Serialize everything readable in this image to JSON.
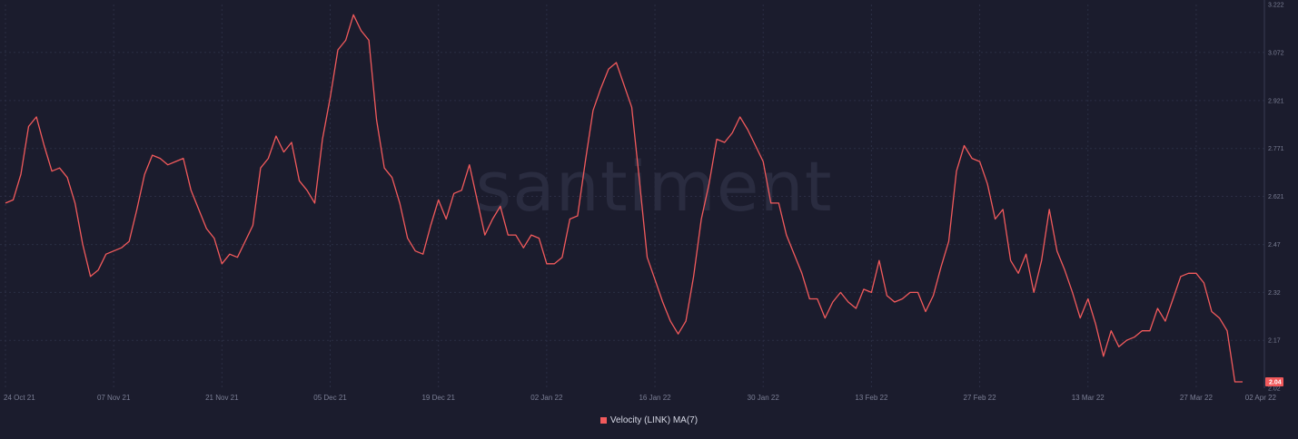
{
  "watermark": "santiment",
  "chart_data": {
    "type": "line",
    "title": "",
    "xlabel": "",
    "ylabel": "",
    "ylim": [
      2.02,
      3.222
    ],
    "grid": true,
    "legend_placement": "bottom-center",
    "x_ticks": [
      "24 Oct 21",
      "07 Nov 21",
      "21 Nov 21",
      "05 Dec 21",
      "19 Dec 21",
      "02 Jan 22",
      "16 Jan 22",
      "30 Jan 22",
      "13 Feb 22",
      "27 Feb 22",
      "13 Mar 22",
      "27 Mar 22",
      "02 Apr 22"
    ],
    "y_ticks": [
      "3.222",
      "3.072",
      "2.921",
      "2.771",
      "2.621",
      "2.47",
      "2.32",
      "2.17",
      "2.02"
    ],
    "last_value_label": "2.04",
    "series": [
      {
        "name": "Velocity (LINK) MA(7)",
        "color": "#f25a5c",
        "x": [
          "2021-10-24",
          "2021-10-25",
          "2021-10-26",
          "2021-10-27",
          "2021-10-28",
          "2021-10-29",
          "2021-10-30",
          "2021-10-31",
          "2021-11-01",
          "2021-11-02",
          "2021-11-03",
          "2021-11-04",
          "2021-11-05",
          "2021-11-06",
          "2021-11-07",
          "2021-11-08",
          "2021-11-09",
          "2021-11-10",
          "2021-11-11",
          "2021-11-12",
          "2021-11-13",
          "2021-11-14",
          "2021-11-15",
          "2021-11-16",
          "2021-11-17",
          "2021-11-18",
          "2021-11-19",
          "2021-11-20",
          "2021-11-21",
          "2021-11-22",
          "2021-11-23",
          "2021-11-24",
          "2021-11-25",
          "2021-11-26",
          "2021-11-27",
          "2021-11-28",
          "2021-11-29",
          "2021-11-30",
          "2021-12-01",
          "2021-12-02",
          "2021-12-03",
          "2021-12-04",
          "2021-12-05",
          "2021-12-06",
          "2021-12-07",
          "2021-12-08",
          "2021-12-09",
          "2021-12-10",
          "2021-12-11",
          "2021-12-12",
          "2021-12-13",
          "2021-12-14",
          "2021-12-15",
          "2021-12-16",
          "2021-12-17",
          "2021-12-18",
          "2021-12-19",
          "2021-12-20",
          "2021-12-21",
          "2021-12-22",
          "2021-12-23",
          "2021-12-24",
          "2021-12-25",
          "2021-12-26",
          "2021-12-27",
          "2021-12-28",
          "2021-12-29",
          "2021-12-30",
          "2021-12-31",
          "2022-01-01",
          "2022-01-02",
          "2022-01-03",
          "2022-01-04",
          "2022-01-05",
          "2022-01-06",
          "2022-01-07",
          "2022-01-08",
          "2022-01-09",
          "2022-01-10",
          "2022-01-11",
          "2022-01-12",
          "2022-01-13",
          "2022-01-14",
          "2022-01-15",
          "2022-01-16",
          "2022-01-17",
          "2022-01-18",
          "2022-01-19",
          "2022-01-20",
          "2022-01-21",
          "2022-01-22",
          "2022-01-23",
          "2022-01-24",
          "2022-01-25",
          "2022-01-26",
          "2022-01-27",
          "2022-01-28",
          "2022-01-29",
          "2022-01-30",
          "2022-01-31",
          "2022-02-01",
          "2022-02-02",
          "2022-02-03",
          "2022-02-04",
          "2022-02-05",
          "2022-02-06",
          "2022-02-07",
          "2022-02-08",
          "2022-02-09",
          "2022-02-10",
          "2022-02-11",
          "2022-02-12",
          "2022-02-13",
          "2022-02-14",
          "2022-02-15",
          "2022-02-16",
          "2022-02-17",
          "2022-02-18",
          "2022-02-19",
          "2022-02-20",
          "2022-02-21",
          "2022-02-22",
          "2022-02-23",
          "2022-02-24",
          "2022-02-25",
          "2022-02-26",
          "2022-02-27",
          "2022-02-28",
          "2022-03-01",
          "2022-03-02",
          "2022-03-03",
          "2022-03-04",
          "2022-03-05",
          "2022-03-06",
          "2022-03-07",
          "2022-03-08",
          "2022-03-09",
          "2022-03-10",
          "2022-03-11",
          "2022-03-12",
          "2022-03-13",
          "2022-03-14",
          "2022-03-15",
          "2022-03-16",
          "2022-03-17",
          "2022-03-18",
          "2022-03-19",
          "2022-03-20",
          "2022-03-21",
          "2022-03-22",
          "2022-03-23",
          "2022-03-24",
          "2022-03-25",
          "2022-03-26",
          "2022-03-27",
          "2022-03-28",
          "2022-03-29",
          "2022-03-30",
          "2022-03-31",
          "2022-04-01",
          "2022-04-02"
        ],
        "values": [
          2.6,
          2.61,
          2.69,
          2.84,
          2.87,
          2.78,
          2.7,
          2.71,
          2.68,
          2.6,
          2.47,
          2.37,
          2.39,
          2.44,
          2.45,
          2.46,
          2.48,
          2.58,
          2.69,
          2.75,
          2.74,
          2.72,
          2.73,
          2.74,
          2.64,
          2.58,
          2.52,
          2.49,
          2.41,
          2.44,
          2.43,
          2.48,
          2.53,
          2.71,
          2.74,
          2.81,
          2.76,
          2.79,
          2.67,
          2.64,
          2.6,
          2.8,
          2.93,
          3.08,
          3.11,
          3.19,
          3.14,
          3.11,
          2.86,
          2.71,
          2.68,
          2.6,
          2.49,
          2.45,
          2.44,
          2.53,
          2.61,
          2.55,
          2.63,
          2.64,
          2.72,
          2.61,
          2.5,
          2.55,
          2.59,
          2.5,
          2.5,
          2.46,
          2.5,
          2.49,
          2.41,
          2.41,
          2.43,
          2.55,
          2.56,
          2.73,
          2.89,
          2.96,
          3.02,
          3.04,
          2.97,
          2.9,
          2.67,
          2.43,
          2.36,
          2.29,
          2.23,
          2.19,
          2.23,
          2.37,
          2.55,
          2.66,
          2.8,
          2.79,
          2.82,
          2.87,
          2.83,
          2.78,
          2.73,
          2.6,
          2.6,
          2.5,
          2.44,
          2.38,
          2.3,
          2.3,
          2.24,
          2.29,
          2.32,
          2.29,
          2.27,
          2.33,
          2.32,
          2.42,
          2.31,
          2.29,
          2.3,
          2.32,
          2.32,
          2.26,
          2.31,
          2.4,
          2.48,
          2.7,
          2.78,
          2.74,
          2.73,
          2.66,
          2.55,
          2.58,
          2.42,
          2.38,
          2.44,
          2.32,
          2.42,
          2.58,
          2.45,
          2.39,
          2.32,
          2.24,
          2.3,
          2.22,
          2.12,
          2.2,
          2.15,
          2.17,
          2.18,
          2.2,
          2.2,
          2.27,
          2.23,
          2.3,
          2.37,
          2.38,
          2.38,
          2.35,
          2.26,
          2.24,
          2.2,
          2.04,
          2.04
        ]
      }
    ]
  }
}
